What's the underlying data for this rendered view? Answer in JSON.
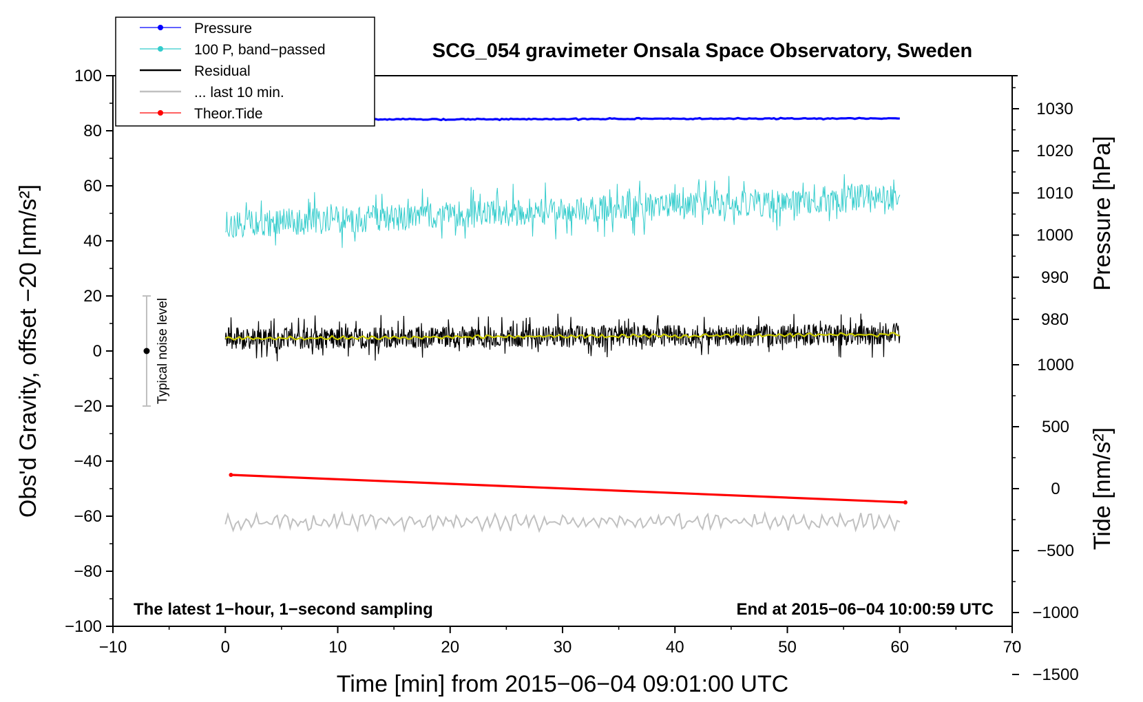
{
  "chart_data": {
    "type": "line",
    "title": "SCG_054 gravimeter Onsala Space Observatory, Sweden",
    "xlabel": "Time [min] from 2015−06−04 09:01:00 UTC",
    "ylabel_left": "Obs'd Gravity, offset −20 [nm/s²]",
    "ylabel_right_pressure": "Pressure [hPa]",
    "ylabel_right_tide": "Tide [nm/s²]",
    "xlim": [
      -10,
      70
    ],
    "ylim_left": [
      -100,
      100
    ],
    "x_ticks": [
      "−10",
      "0",
      "10",
      "20",
      "30",
      "40",
      "50",
      "60",
      "70"
    ],
    "y_left_ticks": [
      "100",
      "80",
      "60",
      "40",
      "20",
      "0",
      "−20",
      "−40",
      "−60",
      "−80",
      "−100"
    ],
    "pressure_ticks": [
      "1030",
      "1020",
      "1010",
      "1000",
      "990",
      "980"
    ],
    "tide_ticks": [
      "1000",
      "500",
      "0",
      "−500",
      "−1000",
      "−1500"
    ],
    "grid": false,
    "legend_position": "top-left",
    "legend": [
      {
        "label": "Pressure",
        "color": "#0000ff",
        "marker": true
      },
      {
        "label": "100 P, band−passed",
        "color": "#33cccc",
        "marker": true
      },
      {
        "label": "Residual",
        "color": "#000000",
        "marker": false
      },
      {
        "label": "... last 10 min.",
        "color": "#c0c0c0",
        "marker": false
      },
      {
        "label": "Theor.Tide",
        "color": "#ff0000",
        "marker": true
      }
    ],
    "series": [
      {
        "name": "Pressure",
        "color": "#0000ff",
        "x_range": [
          0,
          60
        ],
        "level_left_axis": [
          84,
          84.5
        ]
      },
      {
        "name": "100 P, band−passed",
        "color": "#33cccc",
        "x_range": [
          0,
          60
        ],
        "mean_left_axis": [
          46,
          56
        ],
        "amplitude": 5
      },
      {
        "name": "Residual",
        "color": "#000000",
        "x_range": [
          0,
          60
        ],
        "mean_left_axis": [
          4.5,
          6
        ],
        "amplitude": 4
      },
      {
        "name": "smoothed residual",
        "color": "#cccc00",
        "x_range": [
          0,
          60
        ],
        "mean_left_axis": [
          4.5,
          6
        ]
      },
      {
        "name": "... last 10 min.",
        "color": "#c0c0c0",
        "x_range": [
          0,
          60
        ],
        "mean_left_axis": [
          -62,
          -62
        ],
        "amplitude": 3
      },
      {
        "name": "Theor.Tide",
        "color": "#ff0000",
        "x_range": [
          0.5,
          60.5
        ],
        "left_axis_values": [
          -45,
          -55
        ]
      }
    ],
    "noise_bar": {
      "label": "Typical noise level",
      "x": -7,
      "y_range": [
        -20,
        20
      ],
      "center": 0
    },
    "annotations": {
      "left": "The latest 1−hour, 1−second sampling",
      "right": "End at 2015−06−04 10:00:59 UTC"
    }
  }
}
